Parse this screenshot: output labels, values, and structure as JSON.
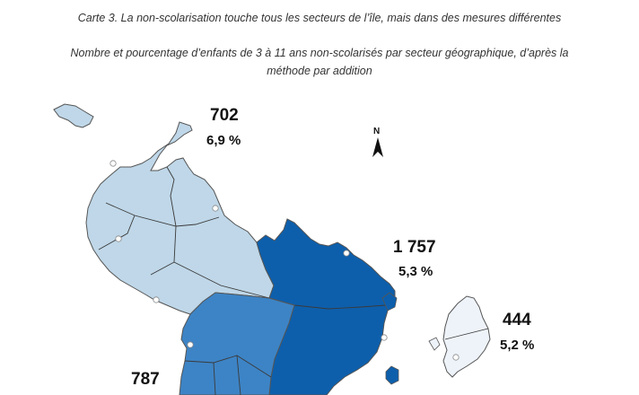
{
  "header": {
    "title": "Carte 3. La non-scolarisation touche tous les secteurs de l’île, mais dans des mesures différentes",
    "subtitle_line1": "Nombre et pourcentage d’enfants de 3 à 11 ans non-scolarisés par secteur géographique, d’après la",
    "subtitle_line2": "méthode par addition"
  },
  "north_arrow": {
    "letter": "N"
  },
  "sectors": [
    {
      "id": "north-west",
      "count": "702",
      "percent": "6,9 %",
      "color": "#bfd7e8"
    },
    {
      "id": "centre-east",
      "count": "1 757",
      "percent": "5,3 %",
      "color": "#0d5fac"
    },
    {
      "id": "petite-terre",
      "count": "444",
      "percent": "5,2 %",
      "color": "#eef3fa"
    },
    {
      "id": "centre-west",
      "count": "787",
      "percent": "",
      "color": "#3d84c6"
    }
  ],
  "colors": {
    "border": "#3a3a3a",
    "outline": "#555555"
  }
}
